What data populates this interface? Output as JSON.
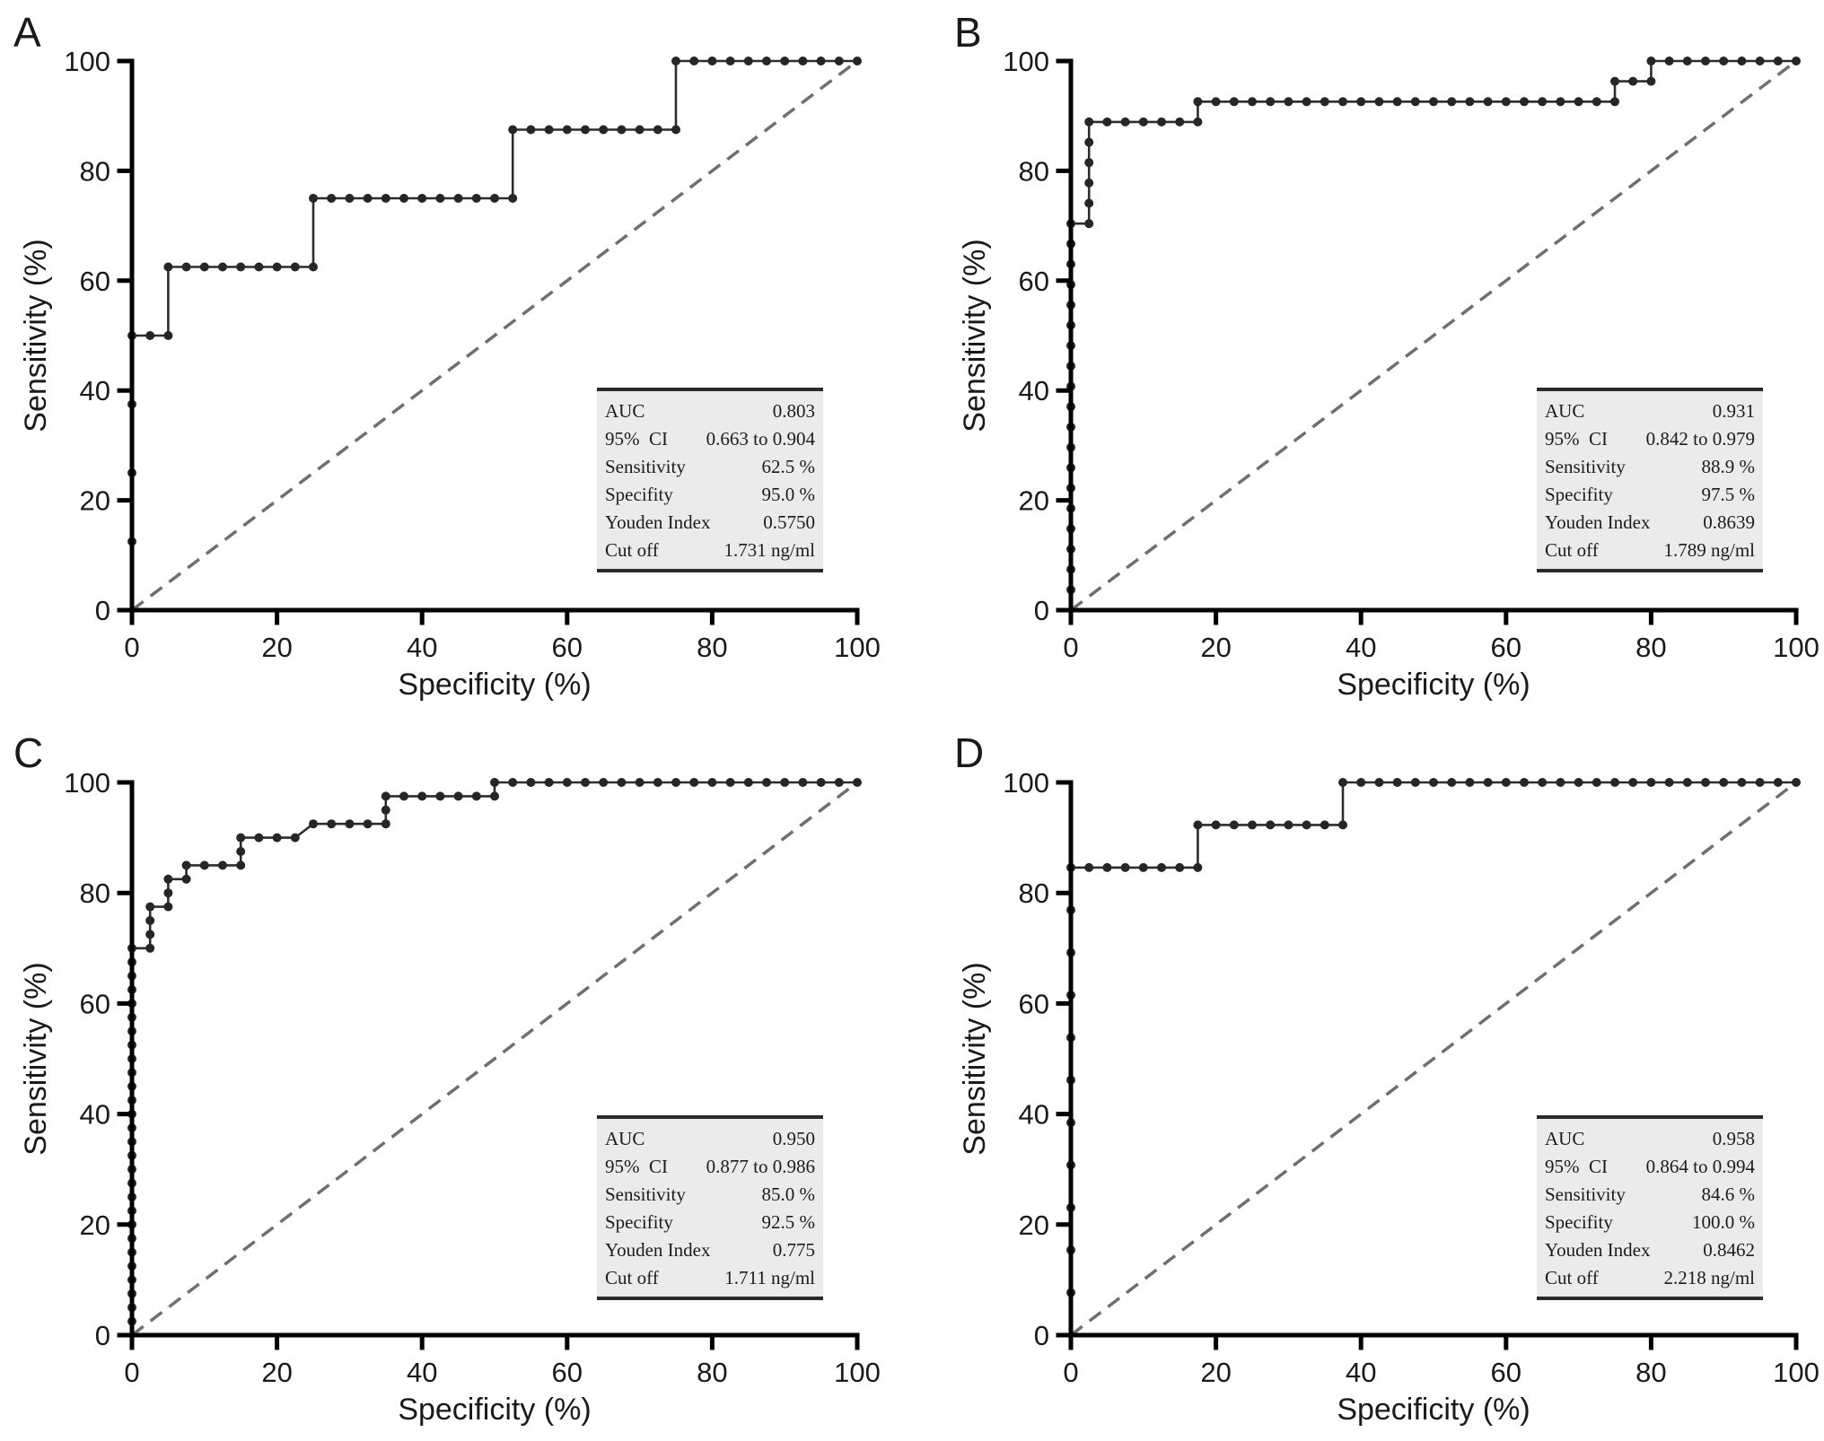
{
  "figure": {
    "xlabel": "Specificity (%)",
    "ylabel": "Sensitivity (%)",
    "xticks": [
      0,
      20,
      40,
      60,
      80,
      100
    ],
    "yticks": [
      0,
      20,
      40,
      60,
      80,
      100
    ]
  },
  "colors": {
    "curve": "#2d2d2d",
    "marker": "#262626",
    "diagonal": "#6f6f6f",
    "axis": "#000000",
    "text": "#1a1a1a",
    "stats_background": "#ebebeb",
    "stats_border": "#2b2b2b"
  },
  "chart_data": [
    {
      "panel": "A",
      "type": "line",
      "xlabel": "Specificity (%)",
      "ylabel": "Sensitivity (%)",
      "xlim": [
        0,
        100
      ],
      "ylim": [
        0,
        100
      ],
      "xticks": [
        0,
        20,
        40,
        60,
        80,
        100
      ],
      "yticks": [
        0,
        20,
        40,
        60,
        80,
        100
      ],
      "diagonal_reference": true,
      "roc_points": [
        [
          0,
          0
        ],
        [
          0,
          50
        ],
        [
          5,
          50
        ],
        [
          5,
          62.5
        ],
        [
          25,
          62.5
        ],
        [
          25,
          75
        ],
        [
          52.5,
          75
        ],
        [
          52.5,
          87.5
        ],
        [
          75,
          87.5
        ],
        [
          75,
          100
        ],
        [
          100,
          100
        ]
      ],
      "sensitivity_step": 12.5,
      "marker_spacing_x": 2.5,
      "stats": [
        {
          "label": "AUC",
          "value": "0.803"
        },
        {
          "label": "95%  CI",
          "value": "0.663 to 0.904"
        },
        {
          "label": "Sensitivity",
          "value": "62.5 %"
        },
        {
          "label": "Specifity",
          "value": "95.0 %"
        },
        {
          "label": "Youden Index",
          "value": "0.5750"
        },
        {
          "label": "Cut off",
          "value": "1.731 ng/ml"
        }
      ]
    },
    {
      "panel": "B",
      "type": "line",
      "xlabel": "Specificity (%)",
      "ylabel": "Sensitivity (%)",
      "xlim": [
        0,
        100
      ],
      "ylim": [
        0,
        100
      ],
      "xticks": [
        0,
        20,
        40,
        60,
        80,
        100
      ],
      "yticks": [
        0,
        20,
        40,
        60,
        80,
        100
      ],
      "diagonal_reference": true,
      "roc_points": [
        [
          0,
          0
        ],
        [
          0,
          70.4
        ],
        [
          2.5,
          70.4
        ],
        [
          2.5,
          88.9
        ],
        [
          17.5,
          88.9
        ],
        [
          17.5,
          92.6
        ],
        [
          75,
          92.6
        ],
        [
          75,
          96.3
        ],
        [
          80,
          96.3
        ],
        [
          80,
          100
        ],
        [
          100,
          100
        ]
      ],
      "sensitivity_step": 3.7037,
      "marker_spacing_x": 2.5,
      "stats": [
        {
          "label": "AUC",
          "value": "0.931"
        },
        {
          "label": "95%  CI",
          "value": "0.842 to 0.979"
        },
        {
          "label": "Sensitivity",
          "value": "88.9 %"
        },
        {
          "label": "Specifity",
          "value": "97.5 %"
        },
        {
          "label": "Youden Index",
          "value": "0.8639"
        },
        {
          "label": "Cut off",
          "value": "1.789 ng/ml"
        }
      ]
    },
    {
      "panel": "C",
      "type": "line",
      "xlabel": "Specificity (%)",
      "ylabel": "Sensitivity (%)",
      "xlim": [
        0,
        100
      ],
      "ylim": [
        0,
        100
      ],
      "xticks": [
        0,
        20,
        40,
        60,
        80,
        100
      ],
      "yticks": [
        0,
        20,
        40,
        60,
        80,
        100
      ],
      "diagonal_reference": true,
      "roc_points": [
        [
          0,
          0
        ],
        [
          0,
          70
        ],
        [
          2.5,
          70
        ],
        [
          2.5,
          77.5
        ],
        [
          5,
          77.5
        ],
        [
          5,
          82.5
        ],
        [
          7.5,
          82.5
        ],
        [
          7.5,
          85
        ],
        [
          15,
          85
        ],
        [
          15,
          90
        ],
        [
          22.5,
          90
        ],
        [
          25,
          92.5
        ],
        [
          35,
          92.5
        ],
        [
          35,
          97.5
        ],
        [
          50,
          97.5
        ],
        [
          50,
          100
        ],
        [
          100,
          100
        ]
      ],
      "sensitivity_step": 2.5,
      "marker_spacing_x": 2.5,
      "stats": [
        {
          "label": "AUC",
          "value": "0.950"
        },
        {
          "label": "95%  CI",
          "value": "0.877 to 0.986"
        },
        {
          "label": "Sensitivity",
          "value": "85.0 %"
        },
        {
          "label": "Specifity",
          "value": "92.5 %"
        },
        {
          "label": "Youden Index",
          "value": "0.775"
        },
        {
          "label": "Cut off",
          "value": "1.711 ng/ml"
        }
      ]
    },
    {
      "panel": "D",
      "type": "line",
      "xlabel": "Specificity (%)",
      "ylabel": "Sensitivity (%)",
      "xlim": [
        0,
        100
      ],
      "ylim": [
        0,
        100
      ],
      "xticks": [
        0,
        20,
        40,
        60,
        80,
        100
      ],
      "yticks": [
        0,
        20,
        40,
        60,
        80,
        100
      ],
      "diagonal_reference": true,
      "roc_points": [
        [
          0,
          0
        ],
        [
          0,
          84.6
        ],
        [
          17.5,
          84.6
        ],
        [
          17.5,
          92.3
        ],
        [
          37.5,
          92.3
        ],
        [
          37.5,
          100
        ],
        [
          100,
          100
        ]
      ],
      "sensitivity_step": 7.6923,
      "marker_spacing_x": 2.5,
      "stats": [
        {
          "label": "AUC",
          "value": "0.958"
        },
        {
          "label": "95%  CI",
          "value": "0.864 to 0.994"
        },
        {
          "label": "Sensitivity",
          "value": "84.6 %"
        },
        {
          "label": "Specifity",
          "value": "100.0 %"
        },
        {
          "label": "Youden Index",
          "value": "0.8462"
        },
        {
          "label": "Cut off",
          "value": "2.218 ng/ml"
        }
      ]
    }
  ]
}
